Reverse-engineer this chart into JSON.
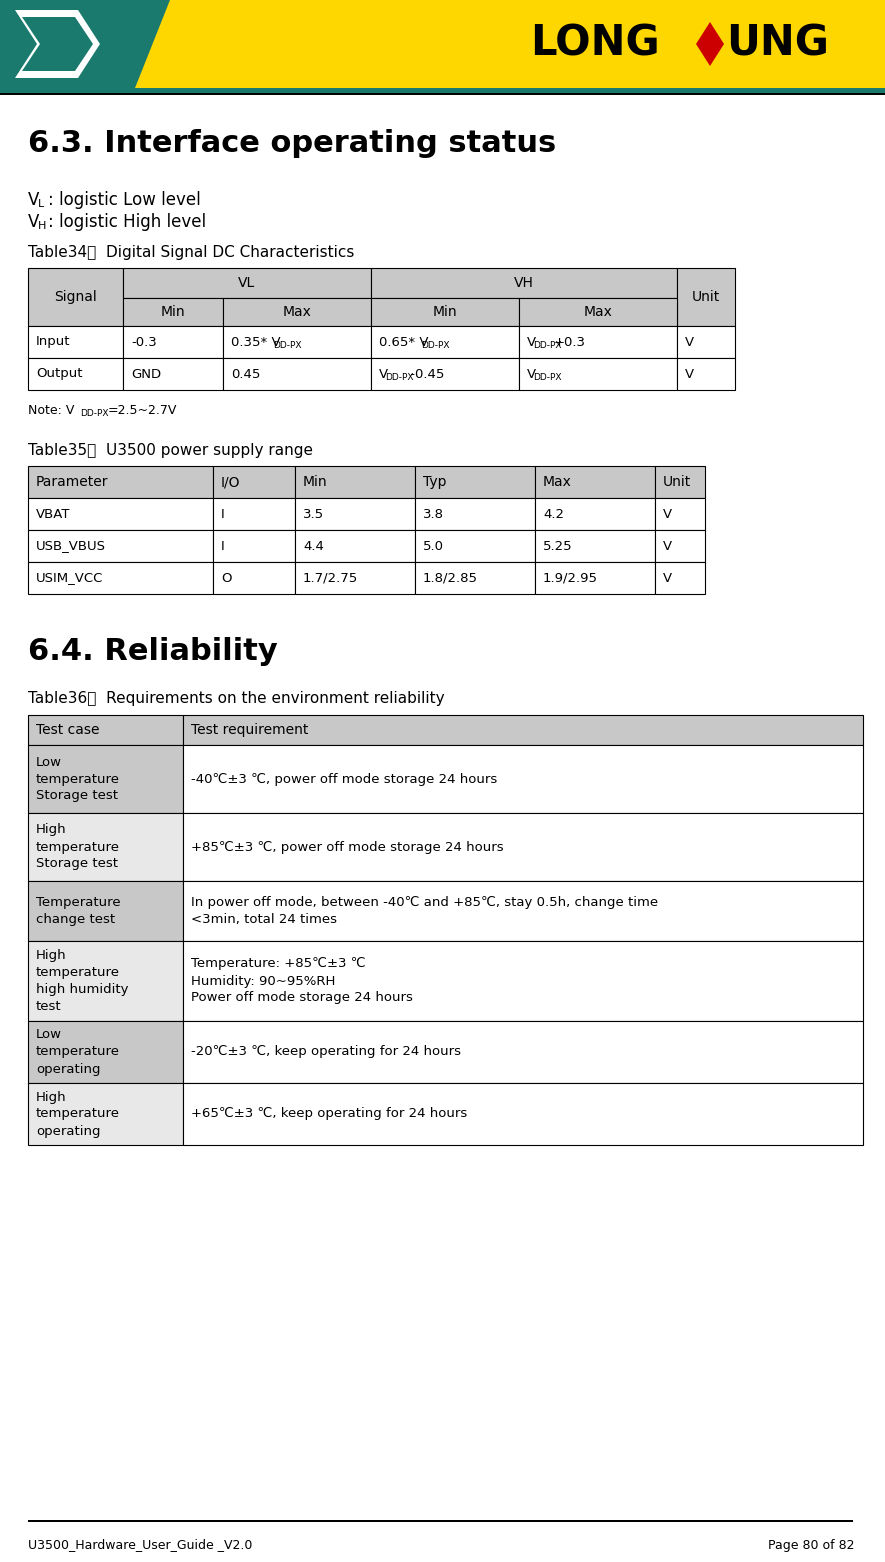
{
  "page_title": "6.3. Interface operating status",
  "section2_title": "6.4. Reliability",
  "table34_title": "Table34：  Digital Signal DC Characteristics",
  "table34_note_prefix": "Note: V",
  "table34_note_sub": "DD-PX",
  "table34_note_suffix": "=2.5~2.7V",
  "table35_title": "Table35：  U3500 power supply range",
  "table35_headers": [
    "Parameter",
    "I/O",
    "Min",
    "Typ",
    "Max",
    "Unit"
  ],
  "table35_data": [
    [
      "VBAT",
      "I",
      "3.5",
      "3.8",
      "4.2",
      "V"
    ],
    [
      "USB_VBUS",
      "I",
      "4.4",
      "5.0",
      "5.25",
      "V"
    ],
    [
      "USIM_VCC",
      "O",
      "1.7/2.75",
      "1.8/2.85",
      "1.9/2.95",
      "V"
    ]
  ],
  "table36_title": "Table36：  Requirements on the environment reliability",
  "table36_headers": [
    "Test case",
    "Test requirement"
  ],
  "table36_data": [
    [
      "Low\ntemperature\nStorage test",
      "-40℃±3 ℃, power off mode storage 24 hours"
    ],
    [
      "High\ntemperature\nStorage test",
      "+85℃±3 ℃, power off mode storage 24 hours"
    ],
    [
      "Temperature\nchange test",
      "In power off mode, between -40℃ and +85℃, stay 0.5h, change time\n<3min, total 24 times"
    ],
    [
      "High\ntemperature\nhigh humidity\ntest",
      "Temperature: +85℃±3 ℃\nHumidity: 90~95%RH\nPower off mode storage 24 hours"
    ],
    [
      "Low\ntemperature\noperating",
      "-20℃±3 ℃, keep operating for 24 hours"
    ],
    [
      "High\ntemperature\noperating",
      "+65℃±3 ℃, keep operating for 24 hours"
    ]
  ],
  "footer_left": "U3500_Hardware_User_Guide _V2.0",
  "footer_right": "Page 80 of 82",
  "teal_color": "#1a7a6e",
  "yellow_color": "#FFD700",
  "gray_header": "#C8C8C8",
  "light_gray": "#E8E8E8",
  "white": "#FFFFFF",
  "black": "#000000"
}
